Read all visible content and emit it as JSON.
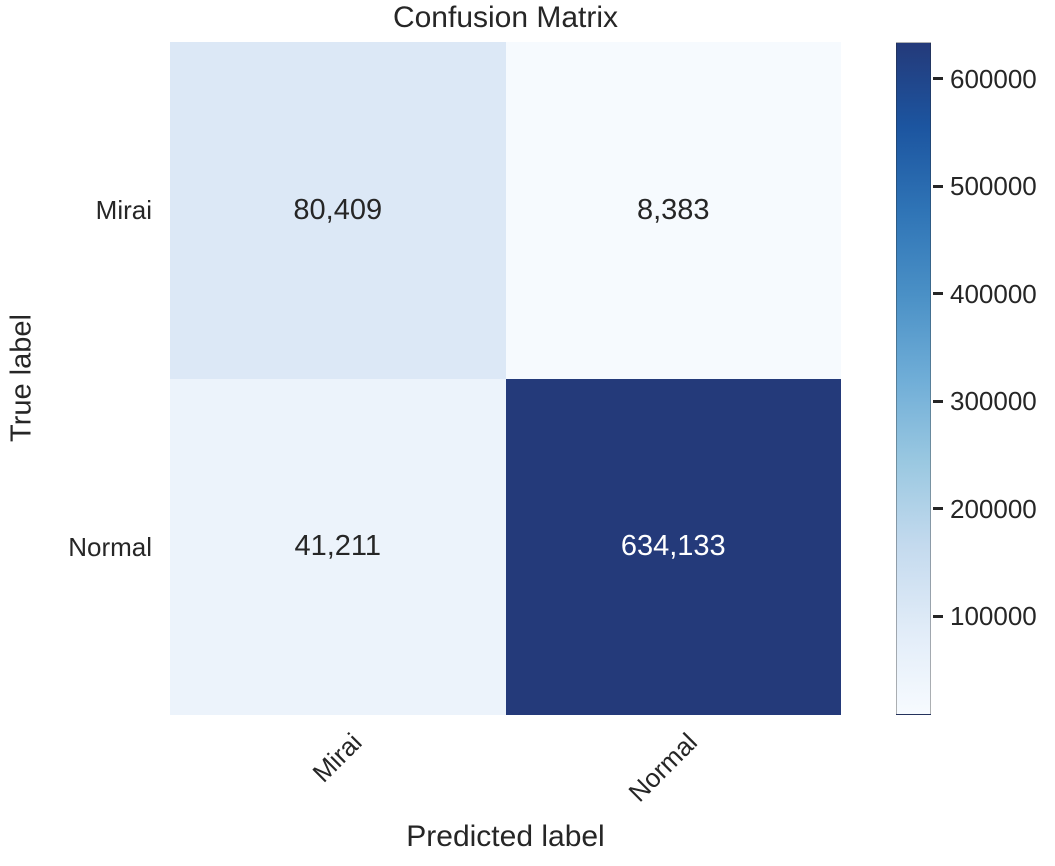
{
  "chart_data": {
    "type": "heatmap",
    "title": "Confusion Matrix",
    "xlabel": "Predicted label",
    "ylabel": "True label",
    "x_categories": [
      "Mirai",
      "Normal"
    ],
    "y_categories": [
      "Mirai",
      "Normal"
    ],
    "matrix": [
      [
        80409,
        8383
      ],
      [
        41211,
        634133
      ]
    ],
    "cell_labels": [
      [
        "80,409",
        "8,383"
      ],
      [
        "41,211",
        "634,133"
      ]
    ],
    "cell_colors": [
      [
        "#dce8f6",
        "#f6fafe"
      ],
      [
        "#ecf3fb",
        "#243a7a"
      ]
    ],
    "cell_text_colors": [
      [
        "#262626",
        "#262626"
      ],
      [
        "#262626",
        "#ffffff"
      ]
    ],
    "colormap": "Blues",
    "vmin": 8383,
    "vmax": 634133,
    "colorbar_ticks": [
      "600000",
      "500000",
      "400000",
      "300000",
      "200000",
      "100000"
    ],
    "colorbar_tick_values": [
      600000,
      500000,
      400000,
      300000,
      200000,
      100000
    ],
    "colorbar_gradient": [
      "#243a7a",
      "#1c55a0",
      "#2f74b6",
      "#4a90c6",
      "#6fadd7",
      "#9ac8e1",
      "#c4daee",
      "#e1ecf8",
      "#f7fbff"
    ],
    "colors": {
      "text": "#262626",
      "background": "#ffffff",
      "annotation_light": "#ffffff"
    },
    "legend_position": "right-colorbar",
    "grid": false
  }
}
